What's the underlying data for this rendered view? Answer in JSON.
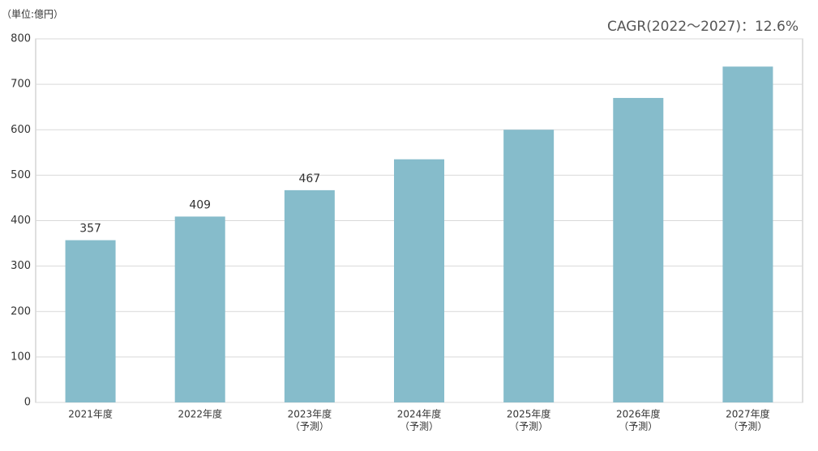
{
  "chart_data": {
    "type": "bar",
    "y_label": "（単位:億円）",
    "annotation": "CAGR(2022～2027)：12.6%",
    "categories": [
      [
        "2021年度"
      ],
      [
        "2022年度"
      ],
      [
        "2023年度",
        "（予測）"
      ],
      [
        "2024年度",
        "（予測）"
      ],
      [
        "2025年度",
        "（予測）"
      ],
      [
        "2026年度",
        "（予測）"
      ],
      [
        "2027年度",
        "（予測）"
      ]
    ],
    "values": [
      357,
      409,
      467,
      535,
      600,
      670,
      739
    ],
    "value_labels": [
      "357",
      "409",
      "467",
      null,
      null,
      null,
      null
    ],
    "color": "#86bccb",
    "ylim": [
      0,
      800
    ],
    "yticks": [
      0,
      100,
      200,
      300,
      400,
      500,
      600,
      700,
      800
    ],
    "grid": true
  }
}
